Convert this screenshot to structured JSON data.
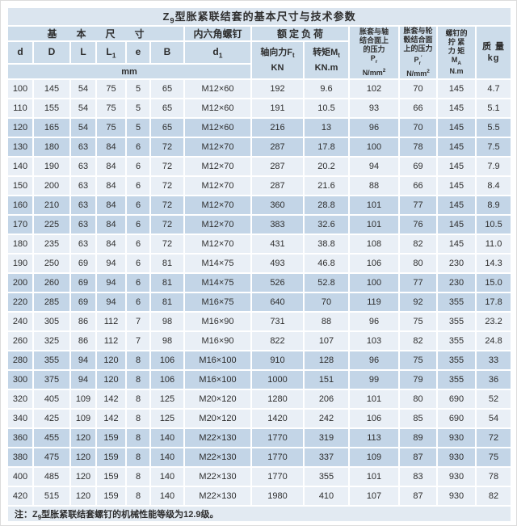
{
  "colors": {
    "title_bar": "#dbe5ef",
    "header": "#ccdcea",
    "row_light": "#e9eff6",
    "row_dark": "#c3d5e7",
    "note_bg": "#e2eaf2",
    "grid": "#ffffff",
    "text": "#2e2e2e"
  },
  "title": {
    "prefix": "Z",
    "sub": "9",
    "rest": "型胀紧联结套的基本尺寸与技术参数"
  },
  "header": {
    "basic": "基本尺寸",
    "hex_screw": "内六角螺钉",
    "rated_load": "额定负荷",
    "unit": "mm",
    "dims": [
      {
        "m": "d",
        "s": ""
      },
      {
        "m": "D",
        "s": ""
      },
      {
        "m": "L",
        "s": ""
      },
      {
        "m": "L",
        "s": "1"
      },
      {
        "m": "e",
        "s": ""
      },
      {
        "m": "B",
        "s": ""
      },
      {
        "m": "d",
        "s": "1"
      }
    ],
    "axial": {
      "l1": "轴向力F",
      "sub": "t",
      "l2": "KN"
    },
    "torque": {
      "l1": "转矩M",
      "sub": "t",
      "l2": "KN.m"
    },
    "pr_shaft": {
      "l1": "胀套与轴",
      "l2": "结合面上",
      "l3": "的压力",
      "sym": "P",
      "sym_sub": "r",
      "unit": "N/mm",
      "unit_sup": "2"
    },
    "pr_hub": {
      "l1": "胀套与轮",
      "l2": "毂结合面",
      "l3": "上的压力",
      "sym": "P",
      "sym_sub": "r",
      "sym_mark": "′",
      "unit": "N/mm",
      "unit_sup": "2"
    },
    "ma": {
      "l1": "螺钉的",
      "l2": "拧 紧",
      "l3": "力 矩",
      "sym": "M",
      "sym_sub": "A",
      "unit": "N.m"
    },
    "mass": {
      "l1": "质 量",
      "l2": "kg"
    }
  },
  "table": {
    "rows": [
      [
        "100",
        "145",
        "54",
        "75",
        "5",
        "65",
        "M12×60",
        "192",
        "9.6",
        "102",
        "70",
        "145",
        "4.7"
      ],
      [
        "110",
        "155",
        "54",
        "75",
        "5",
        "65",
        "M12×60",
        "191",
        "10.5",
        "93",
        "66",
        "145",
        "5.1"
      ],
      [
        "120",
        "165",
        "54",
        "75",
        "5",
        "65",
        "M12×60",
        "216",
        "13",
        "96",
        "70",
        "145",
        "5.5"
      ],
      [
        "130",
        "180",
        "63",
        "84",
        "6",
        "72",
        "M12×70",
        "287",
        "17.8",
        "100",
        "78",
        "145",
        "7.5"
      ],
      [
        "140",
        "190",
        "63",
        "84",
        "6",
        "72",
        "M12×70",
        "287",
        "20.2",
        "94",
        "69",
        "145",
        "7.9"
      ],
      [
        "150",
        "200",
        "63",
        "84",
        "6",
        "72",
        "M12×70",
        "287",
        "21.6",
        "88",
        "66",
        "145",
        "8.4"
      ],
      [
        "160",
        "210",
        "63",
        "84",
        "6",
        "72",
        "M12×70",
        "360",
        "28.8",
        "101",
        "77",
        "145",
        "8.9"
      ],
      [
        "170",
        "225",
        "63",
        "84",
        "6",
        "72",
        "M12×70",
        "383",
        "32.6",
        "101",
        "76",
        "145",
        "10.5"
      ],
      [
        "180",
        "235",
        "63",
        "84",
        "6",
        "72",
        "M12×70",
        "431",
        "38.8",
        "108",
        "82",
        "145",
        "11.0"
      ],
      [
        "190",
        "250",
        "69",
        "94",
        "6",
        "81",
        "M14×75",
        "493",
        "46.8",
        "106",
        "80",
        "230",
        "14.3"
      ],
      [
        "200",
        "260",
        "69",
        "94",
        "6",
        "81",
        "M14×75",
        "526",
        "52.8",
        "100",
        "77",
        "230",
        "15.0"
      ],
      [
        "220",
        "285",
        "69",
        "94",
        "6",
        "81",
        "M16×75",
        "640",
        "70",
        "119",
        "92",
        "355",
        "17.8"
      ],
      [
        "240",
        "305",
        "86",
        "112",
        "7",
        "98",
        "M16×90",
        "731",
        "88",
        "96",
        "75",
        "355",
        "23.2"
      ],
      [
        "260",
        "325",
        "86",
        "112",
        "7",
        "98",
        "M16×90",
        "822",
        "107",
        "103",
        "82",
        "355",
        "24.8"
      ],
      [
        "280",
        "355",
        "94",
        "120",
        "8",
        "106",
        "M16×100",
        "910",
        "128",
        "96",
        "75",
        "355",
        "33"
      ],
      [
        "300",
        "375",
        "94",
        "120",
        "8",
        "106",
        "M16×100",
        "1000",
        "151",
        "99",
        "79",
        "355",
        "36"
      ],
      [
        "320",
        "405",
        "109",
        "142",
        "8",
        "125",
        "M20×120",
        "1280",
        "206",
        "101",
        "80",
        "690",
        "52"
      ],
      [
        "340",
        "425",
        "109",
        "142",
        "8",
        "125",
        "M20×120",
        "1420",
        "242",
        "106",
        "85",
        "690",
        "54"
      ],
      [
        "360",
        "455",
        "120",
        "159",
        "8",
        "140",
        "M22×130",
        "1770",
        "319",
        "113",
        "89",
        "930",
        "72"
      ],
      [
        "380",
        "475",
        "120",
        "159",
        "8",
        "140",
        "M22×130",
        "1770",
        "337",
        "109",
        "87",
        "930",
        "75"
      ],
      [
        "400",
        "485",
        "120",
        "159",
        "8",
        "140",
        "M22×130",
        "1770",
        "355",
        "101",
        "83",
        "930",
        "78"
      ],
      [
        "420",
        "515",
        "120",
        "159",
        "8",
        "140",
        "M22×130",
        "1980",
        "410",
        "107",
        "87",
        "930",
        "82"
      ]
    ]
  },
  "note": {
    "prefix": "注：Z",
    "sub": "9",
    "rest": "型胀紧联结套螺钉的机械性能等级为12.9级。"
  }
}
